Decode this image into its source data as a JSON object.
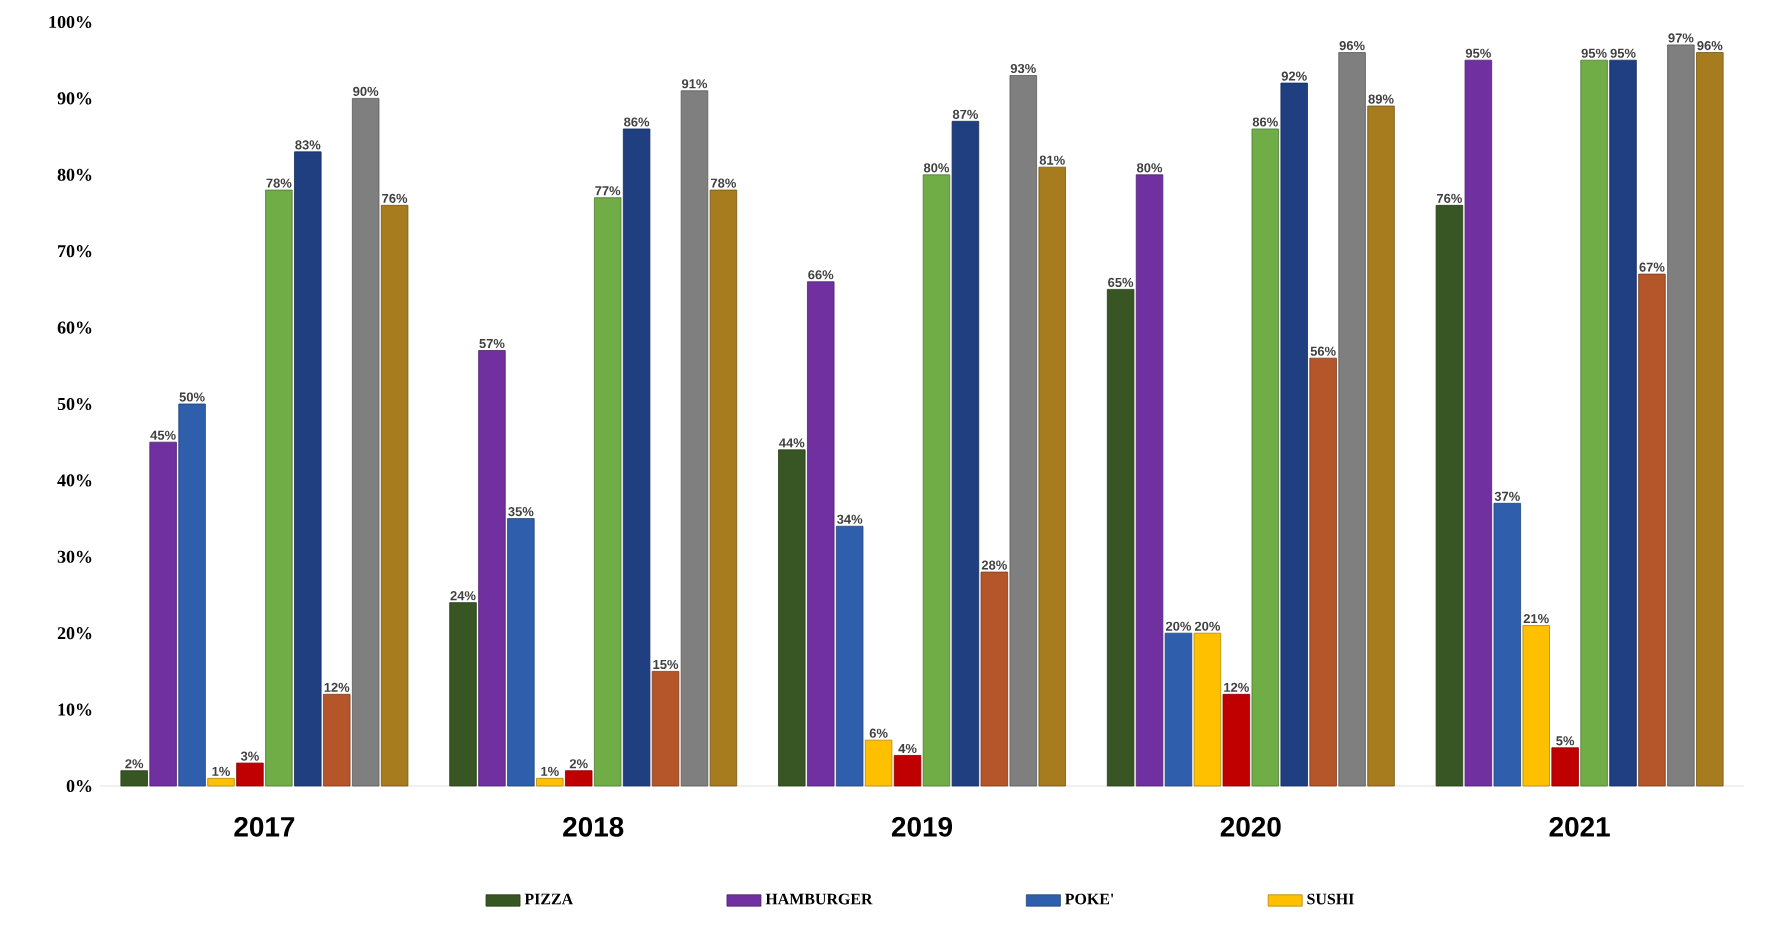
{
  "chart_data": {
    "type": "bar",
    "categories": [
      "2017",
      "2018",
      "2019",
      "2020",
      "2021"
    ],
    "series": [
      {
        "name": "PIZZA",
        "color": "#375623",
        "values": [
          2,
          24,
          44,
          65,
          76
        ],
        "value_labels": [
          "2%",
          "24%",
          "44%",
          "65%",
          "76%"
        ]
      },
      {
        "name": "HAMBURGER",
        "color": "#7030a0",
        "values": [
          45,
          57,
          66,
          80,
          95
        ],
        "value_labels": [
          "45%",
          "57%",
          "66%",
          "80%",
          "95%"
        ]
      },
      {
        "name": "POKE'",
        "color": "#2f5fac",
        "values": [
          50,
          35,
          34,
          20,
          37
        ],
        "value_labels": [
          "50%",
          "35%",
          "34%",
          "20%",
          "37%"
        ]
      },
      {
        "name": "SUSHI",
        "color": "#ffc000",
        "values": [
          1,
          1,
          6,
          20,
          21
        ],
        "value_labels": [
          "1%",
          "1%",
          "6%",
          "20%",
          "21%"
        ]
      },
      {
        "color": "#c00000",
        "values": [
          3,
          2,
          4,
          12,
          5
        ],
        "value_labels": [
          "3%",
          "2%",
          "4%",
          "12%",
          "5%"
        ]
      },
      {
        "color": "#70ad47",
        "values": [
          78,
          77,
          80,
          86,
          95
        ],
        "value_labels": [
          "78%",
          "77%",
          "80%",
          "86%",
          "95%"
        ]
      },
      {
        "color": "#203f80",
        "values": [
          83,
          86,
          87,
          92,
          95
        ],
        "value_labels": [
          "83%",
          "86%",
          "87%",
          "92%",
          "95%"
        ]
      },
      {
        "color": "#b5552a",
        "values": [
          12,
          15,
          28,
          56,
          67
        ],
        "value_labels": [
          "12%",
          "15%",
          "28%",
          "56%",
          "67%"
        ]
      },
      {
        "color": "#7f7f7f",
        "values": [
          90,
          91,
          93,
          96,
          97
        ],
        "value_labels": [
          "90%",
          "91%",
          "93%",
          "96%",
          "97%"
        ]
      },
      {
        "color": "#a67c1e",
        "values": [
          76,
          78,
          81,
          89,
          96
        ],
        "value_labels": [
          "76%",
          "78%",
          "81%",
          "89%",
          "96%"
        ]
      }
    ],
    "ylim": [
      0,
      100
    ],
    "yticks": [
      {
        "value": 0,
        "label": "0%"
      },
      {
        "value": 10,
        "label": "10%"
      },
      {
        "value": 20,
        "label": "20%"
      },
      {
        "value": 30,
        "label": "30%"
      },
      {
        "value": 40,
        "label": "40%"
      },
      {
        "value": 50,
        "label": "50%"
      },
      {
        "value": 60,
        "label": "60%"
      },
      {
        "value": 70,
        "label": "70%"
      },
      {
        "value": 80,
        "label": "80%"
      },
      {
        "value": 90,
        "label": "90%"
      },
      {
        "value": 100,
        "label": "100%"
      }
    ],
    "legend": "bottom"
  }
}
